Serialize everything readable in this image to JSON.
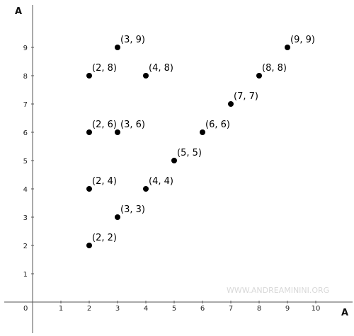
{
  "chart_data": {
    "type": "scatter",
    "title": "",
    "xlabel": "A",
    "ylabel": "A",
    "xlim": [
      -1,
      11.3
    ],
    "ylim": [
      -1.1,
      10.5
    ],
    "x_ticks": [
      1,
      2,
      3,
      4,
      5,
      6,
      7,
      8,
      9,
      10
    ],
    "y_ticks": [
      1,
      2,
      3,
      4,
      5,
      6,
      7,
      8,
      9
    ],
    "origin_label": "0",
    "grid": false,
    "marker_color": "#000000",
    "points": [
      {
        "x": 2,
        "y": 2,
        "label": "(2, 2)"
      },
      {
        "x": 3,
        "y": 3,
        "label": "(3, 3)"
      },
      {
        "x": 2,
        "y": 4,
        "label": "(2, 4)"
      },
      {
        "x": 4,
        "y": 4,
        "label": "(4, 4)"
      },
      {
        "x": 5,
        "y": 5,
        "label": "(5, 5)"
      },
      {
        "x": 2,
        "y": 6,
        "label": "(2, 6)"
      },
      {
        "x": 3,
        "y": 6,
        "label": "(3, 6)"
      },
      {
        "x": 6,
        "y": 6,
        "label": "(6, 6)"
      },
      {
        "x": 7,
        "y": 7,
        "label": "(7, 7)"
      },
      {
        "x": 2,
        "y": 8,
        "label": "(2, 8)"
      },
      {
        "x": 4,
        "y": 8,
        "label": "(4, 8)"
      },
      {
        "x": 8,
        "y": 8,
        "label": "(8, 8)"
      },
      {
        "x": 3,
        "y": 9,
        "label": "(3, 9)"
      },
      {
        "x": 9,
        "y": 9,
        "label": "(9, 9)"
      }
    ]
  },
  "watermark": "WWW.ANDREAMININI.ORG"
}
